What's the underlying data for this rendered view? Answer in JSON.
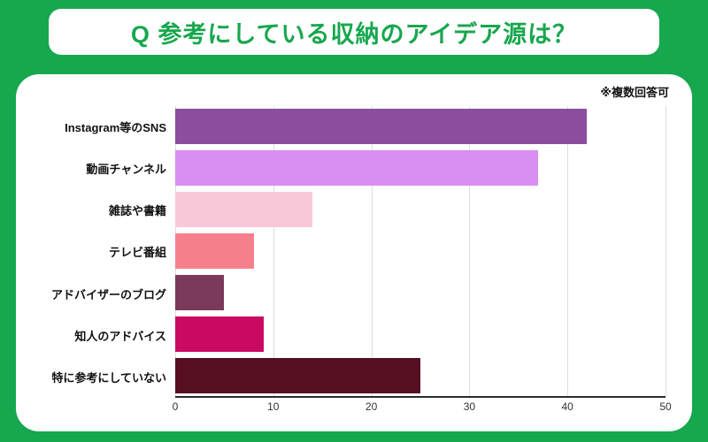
{
  "title": "Q 参考にしている収納のアイデア源は？",
  "note": "※複数回答可",
  "colors": {
    "background_green": "#17A74E",
    "title_green": "#17A74E",
    "card_white": "#FFFFFF",
    "grid_line": "#DEDEDE",
    "axis_line": "#2B2B2B",
    "label_text": "#111111",
    "tick_text": "#333333"
  },
  "chart_data": {
    "type": "bar",
    "orientation": "horizontal",
    "title": "Q 参考にしている収納のアイデア源は？",
    "annotation": "※複数回答可",
    "categories": [
      "Instagram等のSNS",
      "動画チャンネル",
      "雑誌や書籍",
      "テレビ番組",
      "アドバイザーのブログ",
      "知人のアドバイス",
      "特に参考にしていない"
    ],
    "values": [
      42,
      37,
      14,
      8,
      5,
      9,
      25
    ],
    "bar_colors": [
      "#8C4D9E",
      "#D98EF2",
      "#F8C8D9",
      "#F5808C",
      "#7B3A59",
      "#CA0A62",
      "#560E20"
    ],
    "xlabel": "",
    "ylabel": "",
    "xlim": [
      0,
      50
    ],
    "x_ticks": [
      0,
      10,
      20,
      30,
      40,
      50
    ],
    "grid": true,
    "legend": "none"
  }
}
